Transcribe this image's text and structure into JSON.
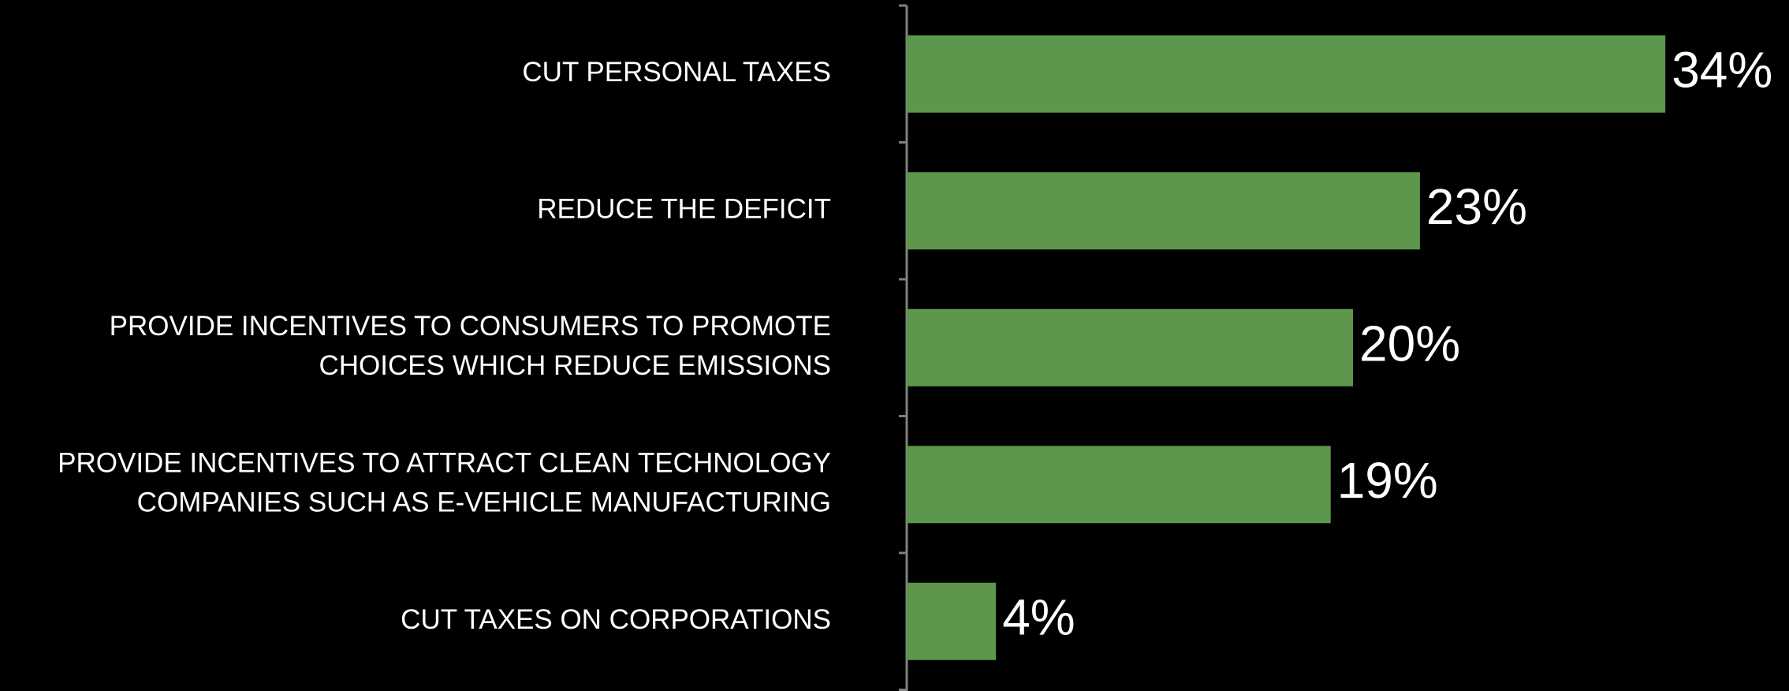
{
  "chart_data": {
    "type": "bar",
    "orientation": "horizontal",
    "categories": [
      "CUT PERSONAL TAXES",
      "REDUCE THE DEFICIT",
      "PROVIDE INCENTIVES TO CONSUMERS TO PROMOTE CHOICES WHICH REDUCE EMISSIONS",
      "PROVIDE INCENTIVES TO ATTRACT CLEAN TECHNOLOGY COMPANIES SUCH AS E-VEHICLE MANUFACTURING",
      "CUT TAXES ON CORPORATIONS"
    ],
    "category_lines": [
      [
        "CUT PERSONAL TAXES"
      ],
      [
        "REDUCE THE DEFICIT"
      ],
      [
        "PROVIDE INCENTIVES TO CONSUMERS TO PROMOTE",
        "CHOICES WHICH REDUCE EMISSIONS"
      ],
      [
        "PROVIDE INCENTIVES TO ATTRACT CLEAN TECHNOLOGY",
        "COMPANIES SUCH AS E-VEHICLE MANUFACTURING"
      ],
      [
        "CUT TAXES ON CORPORATIONS"
      ]
    ],
    "values": [
      34,
      23,
      20,
      19,
      4
    ],
    "value_labels": [
      "34%",
      "23%",
      "20%",
      "19%",
      "4%"
    ],
    "unit": "%",
    "xlim": [
      0,
      34
    ],
    "bar_color": "#5c974b",
    "background_color": "#000000",
    "axis_color": "#808080",
    "text_color": "#ffffff",
    "grid": false,
    "legend": "none"
  }
}
